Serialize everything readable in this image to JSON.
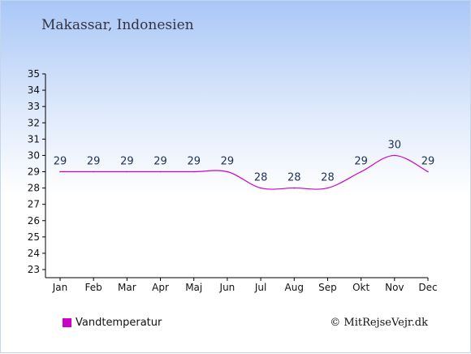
{
  "title": "Makassar, Indonesien",
  "legend_label": "Vandtemperatur",
  "copyright": "© MitRejseVejr.dk",
  "colors": {
    "series": "#cc00cc",
    "axis": "#000000",
    "label": "#223355"
  },
  "chart_data": {
    "type": "line",
    "categories": [
      "Jan",
      "Feb",
      "Mar",
      "Apr",
      "Maj",
      "Jun",
      "Jul",
      "Aug",
      "Sep",
      "Okt",
      "Nov",
      "Dec"
    ],
    "series": [
      {
        "name": "Vandtemperatur",
        "values": [
          29,
          29,
          29,
          29,
          29,
          29,
          28,
          28,
          28,
          29,
          30,
          29
        ]
      }
    ],
    "data_labels": [
      "29",
      "29",
      "29",
      "29",
      "29",
      "29",
      "28",
      "28",
      "28",
      "29",
      "30",
      "29"
    ],
    "yticks": [
      23,
      24,
      25,
      26,
      27,
      28,
      29,
      30,
      31,
      32,
      33,
      34,
      35
    ],
    "ylim": [
      23,
      35
    ],
    "grid": false,
    "legend": "bottom-left",
    "title": "Makassar, Indonesien",
    "xlabel": "",
    "ylabel": ""
  }
}
